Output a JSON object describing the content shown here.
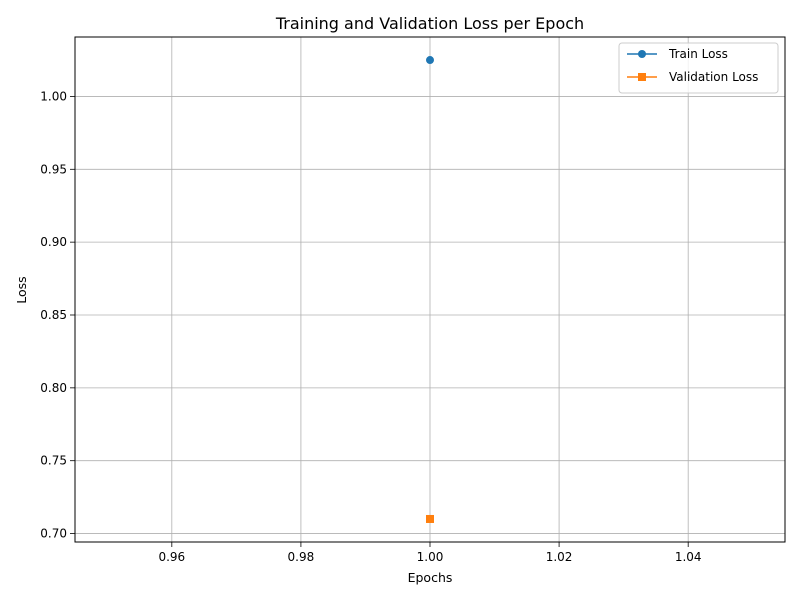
{
  "chart_data": {
    "type": "line",
    "title": "Training and Validation Loss per Epoch",
    "xlabel": "Epochs",
    "ylabel": "Loss",
    "xlim": [
      0.945,
      1.055
    ],
    "ylim": [
      0.6942,
      1.0408
    ],
    "x_ticks": [
      "0.96",
      "0.98",
      "1.00",
      "1.02",
      "1.04"
    ],
    "y_ticks": [
      "0.70",
      "0.75",
      "0.80",
      "0.85",
      "0.90",
      "0.95",
      "1.00"
    ],
    "grid": true,
    "legend_position": "top-right",
    "series": [
      {
        "name": "Train Loss",
        "marker": "circle",
        "color": "#1f77b4",
        "points": [
          {
            "x": 1,
            "y": 1.025
          }
        ]
      },
      {
        "name": "Validation Loss",
        "marker": "square",
        "color": "#ff7f0e",
        "points": [
          {
            "x": 1,
            "y": 0.71
          }
        ]
      }
    ]
  }
}
